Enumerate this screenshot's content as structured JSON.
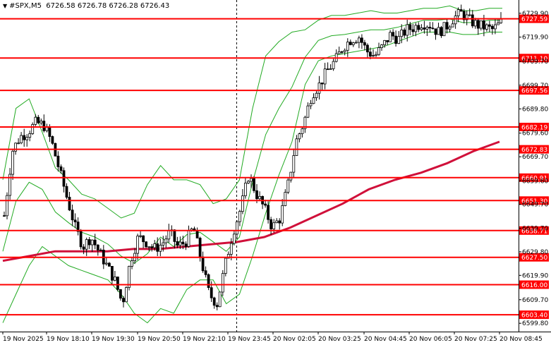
{
  "header": {
    "symbol": "#SPX,M5",
    "ohlc": "6726.58 6726.78 6726.28 6726.43"
  },
  "colors": {
    "candles": "#000000",
    "bollinger": "#22aa22",
    "ma": "#d0103a",
    "levels": "#ff0000",
    "label_bg": "#ff0000",
    "label_text": "#ffffff"
  },
  "chart_data": {
    "type": "candlestick",
    "y_range": [
      6597.5,
      6734.0
    ],
    "y_ticks": [
      "6729.90",
      "6719.90",
      "6709.70",
      "6699.70",
      "6689.80",
      "6679.60",
      "6669.70",
      "6659.60",
      "6649.70",
      "6639.70",
      "6629.80",
      "6619.90",
      "6609.70",
      "6599.80"
    ],
    "levels": [
      "6727.59",
      "6711.10",
      "6697.56",
      "6682.19",
      "6672.83",
      "6660.91",
      "6651.30",
      "6638.71",
      "6627.50",
      "6616.00",
      "6603.40"
    ],
    "x_labels": [
      "19 Nov 2025",
      "19 Nov 18:10",
      "19 Nov 19:30",
      "19 Nov 20:50",
      "19 Nov 22:10",
      "19 Nov 23:45",
      "20 Nov 02:05",
      "20 Nov 03:25",
      "20 Nov 04:45",
      "20 Nov 06:05",
      "20 Nov 07:25",
      "20 Nov 08:45"
    ],
    "close_path": [
      6645,
      6672,
      6678,
      6680,
      6684,
      6683,
      6676,
      6664,
      6652,
      6640,
      6632,
      6636,
      6630,
      6624,
      6618,
      6608,
      6626,
      6636,
      6634,
      6631,
      6633,
      6638,
      6632,
      6634,
      6640,
      6626,
      6612,
      6608,
      6624,
      6638,
      6648,
      6662,
      6654,
      6648,
      6640,
      6644,
      6658,
      6676,
      6684,
      6696,
      6700,
      6706,
      6710,
      6716,
      6719,
      6720,
      6714,
      6712,
      6716,
      6721,
      6719,
      6723,
      6724,
      6726,
      6725,
      6722,
      6724,
      6728,
      6730,
      6727,
      6725,
      6724,
      6723,
      6726
    ],
    "ma_path": [
      6626,
      6628,
      6630,
      6630,
      6630,
      6631,
      6631,
      6632,
      6633,
      6634,
      6636,
      6640,
      6645,
      6650,
      6656,
      6660,
      6663,
      6667,
      6672,
      6676
    ],
    "bb_upper": [
      6660,
      6690,
      6694,
      6680,
      6665,
      6660,
      6654,
      6652,
      6648,
      6644,
      6646,
      6658,
      6666,
      6660,
      6660,
      6658,
      6650,
      6652,
      6660,
      6690,
      6712,
      6718,
      6722,
      6723,
      6727,
      6729,
      6729,
      6730,
      6731,
      6730,
      6730,
      6731,
      6732,
      6732,
      6733,
      6731,
      6731,
      6732,
      6732
    ],
    "bb_lower": [
      6600,
      6612,
      6624,
      6632,
      6628,
      6624,
      6622,
      6620,
      6618,
      6612,
      6604,
      6600,
      6606,
      6604,
      6614,
      6618,
      6618,
      6608,
      6612,
      6628,
      6646,
      6662,
      6676,
      6700,
      6710,
      6712,
      6713,
      6714,
      6715,
      6716,
      6718,
      6720,
      6722,
      6722,
      6722,
      6721,
      6721,
      6722,
      6722
    ]
  }
}
